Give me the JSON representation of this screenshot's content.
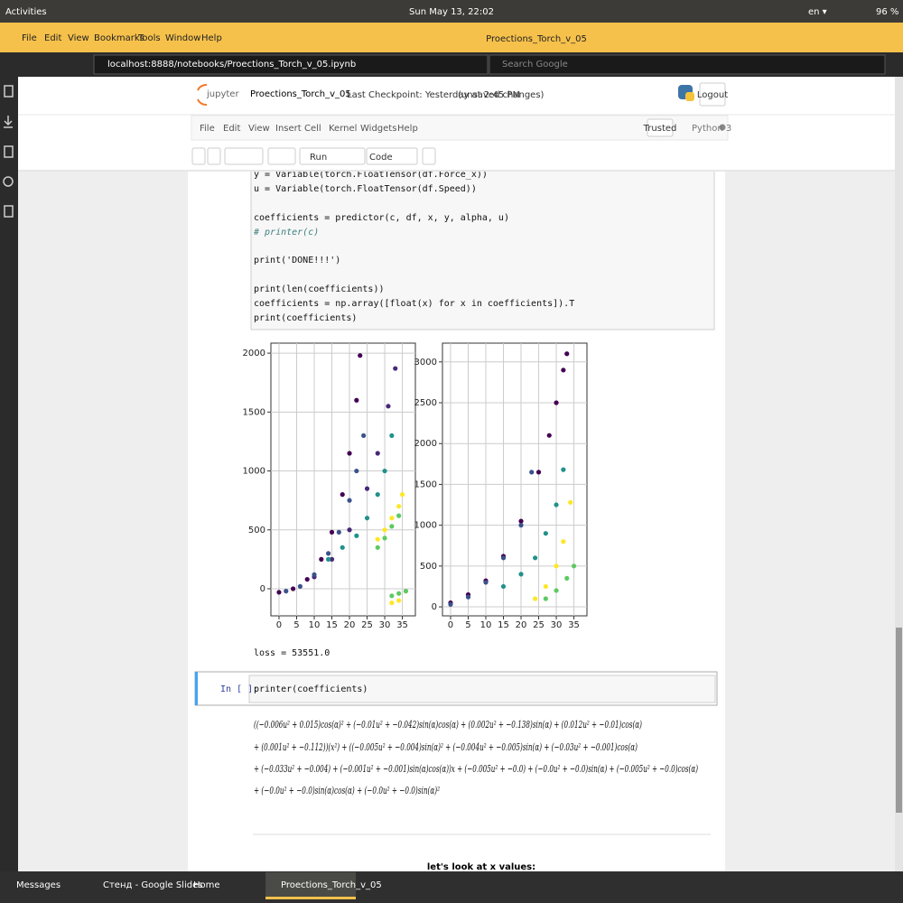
{
  "topbar": {
    "activities": "Activities",
    "clock": "Sun May 13, 22:02",
    "language": "en ▾",
    "battery": "96 %"
  },
  "menubar": {
    "items": [
      "File",
      "Edit",
      "View",
      "Bookmarks",
      "Tools",
      "Window",
      "Help"
    ],
    "window_title": "Proections_Torch_v_05"
  },
  "addressbar": {
    "url": "localhost:8888/notebooks/Proections_Torch_v_05.ipynb",
    "search": "Search Google"
  },
  "jupyter": {
    "logo": "jupyter",
    "notebook": "Proections_Torch_v_05",
    "checkpoint": "Last Checkpoint: Yesterday at 2:45 PM",
    "status": "(unsaved changes)",
    "logout": "Logout",
    "menu": [
      "File",
      "Edit",
      "View",
      "Insert",
      "Cell",
      "Kernel",
      "Widgets",
      "Help"
    ],
    "trusted": "Trusted",
    "kernel": "Python 3",
    "run": "Run",
    "cell_type": "Code"
  },
  "code_cell": {
    "lines": [
      "y = Variable(torch.FloatTensor(df.Force_x))",
      "u = Variable(torch.FloatTensor(df.Speed))",
      "coefficients = predictor(c, df, x, y, alpha, u)",
      "# printer(c)",
      "print('DONE!!!')",
      "print(len(coefficients))",
      "coefficients = np.array([float(x) for x  in coefficients]).T",
      "print(coefficients)"
    ]
  },
  "chart_data": [
    {
      "type": "scatter",
      "xlim": [
        -2.3,
        38.7
      ],
      "ylim": [
        -230,
        2085
      ],
      "xticks": [
        0,
        5,
        10,
        15,
        20,
        25,
        30,
        35
      ],
      "yticks": [
        0,
        500,
        1000,
        1500,
        2000
      ],
      "grid": true,
      "series": [
        {
          "color": "#440154",
          "x": [
            0,
            4,
            8,
            12,
            15,
            18,
            20,
            22,
            23
          ],
          "values": [
            -30,
            0,
            80,
            250,
            480,
            800,
            1150,
            1600,
            1980
          ]
        },
        {
          "color": "#482878",
          "x": [
            10,
            15,
            20,
            25,
            28,
            31,
            33
          ],
          "values": [
            100,
            250,
            500,
            850,
            1150,
            1550,
            1870
          ]
        },
        {
          "color": "#3b528b",
          "x": [
            2,
            6,
            10,
            14,
            17,
            20,
            22,
            24
          ],
          "values": [
            -20,
            20,
            120,
            300,
            480,
            750,
            1000,
            1300
          ]
        },
        {
          "color": "#21918c",
          "x": [
            14,
            18,
            22,
            25,
            28,
            30,
            32
          ],
          "values": [
            250,
            350,
            450,
            600,
            800,
            1000,
            1300
          ]
        },
        {
          "color": "#5ec962",
          "x": [
            28,
            30,
            32,
            34,
            32,
            34,
            36
          ],
          "values": [
            350,
            430,
            530,
            620,
            -60,
            -40,
            -20
          ]
        },
        {
          "color": "#fde725",
          "x": [
            28,
            30,
            32,
            34,
            35,
            32,
            34
          ],
          "values": [
            420,
            500,
            600,
            700,
            800,
            -120,
            -100
          ]
        }
      ]
    },
    {
      "type": "scatter",
      "xlim": [
        -2.3,
        38.7
      ],
      "ylim": [
        -110,
        3230
      ],
      "xticks": [
        0,
        5,
        10,
        15,
        20,
        25,
        30,
        35
      ],
      "yticks": [
        0,
        500,
        1000,
        1500,
        2000,
        2500,
        3000
      ],
      "grid": true,
      "series": [
        {
          "color": "#440154",
          "x": [
            0,
            5,
            10,
            15,
            20,
            25,
            28,
            30,
            32,
            33
          ],
          "values": [
            50,
            150,
            320,
            620,
            1050,
            1650,
            2100,
            2500,
            2900,
            3100
          ]
        },
        {
          "color": "#3b528b",
          "x": [
            0,
            5,
            10,
            15,
            20,
            23
          ],
          "values": [
            30,
            120,
            300,
            600,
            1000,
            1650
          ]
        },
        {
          "color": "#21918c",
          "x": [
            15,
            20,
            24,
            27,
            30,
            32
          ],
          "values": [
            250,
            400,
            600,
            900,
            1250,
            1680
          ]
        },
        {
          "color": "#fde725",
          "x": [
            24,
            27,
            30,
            32,
            34
          ],
          "values": [
            100,
            250,
            500,
            800,
            1280
          ]
        },
        {
          "color": "#5ec962",
          "x": [
            27,
            30,
            33,
            35
          ],
          "values": [
            100,
            200,
            350,
            500
          ]
        }
      ]
    }
  ],
  "output": {
    "loss": "loss =  53551.0"
  },
  "input_cell": {
    "prompt": "In [ ]:",
    "code": "printer(coefficients)"
  },
  "math": {
    "lines": [
      "((−0.006u² + 0.015)cos(α)² + (−0.01u² + −0.042)sin(α)cos(α) + (0.002u² + −0.138)sin(α) + (0.012u² + −0.01)cos(α)",
      "+ (0.001u² + −0.112))(x²) + ((−0.005u² + −0.004)sin(α)² + (−0.004u² + −0.005)sin(α) + (−0.03u² + −0.001)cos(α)",
      "+ (−0.033u² + −0.004) + (−0.001u² + −0.001)sin(α)cos(α))x + (−0.005u² + −0.0) + (−0.0u² + −0.0)sin(α) + (−0.005u² + −0.0)cos(α)",
      "+ (−0.0u² + −0.0)sin(α)cos(α) + (−0.0u² + −0.0)sin(α)²"
    ]
  },
  "heading": "let's look at x values:",
  "taskbar": {
    "items": [
      "Messages",
      "Стенд - Google Slides",
      "Home",
      "Proections_Torch_v_05"
    ]
  }
}
